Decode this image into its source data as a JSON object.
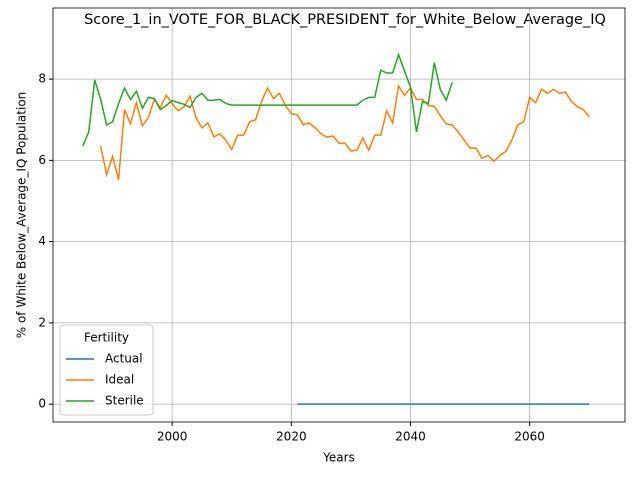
{
  "chart_data": {
    "type": "line",
    "title": "Score_1_in_VOTE_FOR_BLACK_PRESIDENT_for_White_Below_Average_IQ",
    "xlabel": "Years",
    "ylabel": "% of White Below_Average_IQ Population",
    "legend_title": "Fertility",
    "legend": "lower left",
    "grid": true,
    "xlim": [
      1980,
      2076
    ],
    "ylim": [
      -0.44,
      9.75
    ],
    "xticks": [
      2000,
      2020,
      2040,
      2060
    ],
    "yticks": [
      0,
      2,
      4,
      6,
      8
    ],
    "x": [
      1985,
      1986,
      1987,
      1988,
      1989,
      1990,
      1991,
      1992,
      1993,
      1994,
      1995,
      1996,
      1997,
      1998,
      1999,
      2000,
      2001,
      2002,
      2003,
      2004,
      2005,
      2006,
      2007,
      2008,
      2009,
      2010,
      2011,
      2012,
      2013,
      2014,
      2015,
      2016,
      2017,
      2018,
      2019,
      2020,
      2021,
      2022,
      2023,
      2024,
      2025,
      2026,
      2027,
      2028,
      2029,
      2030,
      2031,
      2032,
      2033,
      2034,
      2035,
      2036,
      2037,
      2038,
      2039,
      2040,
      2041,
      2042,
      2043,
      2044,
      2045,
      2046,
      2047,
      2048,
      2049,
      2050,
      2051,
      2052,
      2053,
      2054,
      2055,
      2056,
      2057,
      2058,
      2059,
      2060,
      2061,
      2062,
      2063,
      2064,
      2065,
      2066,
      2067,
      2068,
      2069,
      2070
    ],
    "series": [
      {
        "name": "Actual",
        "color": "#1f77b4",
        "values": [
          null,
          null,
          null,
          null,
          null,
          null,
          null,
          null,
          null,
          null,
          null,
          null,
          null,
          null,
          null,
          null,
          null,
          null,
          null,
          null,
          null,
          null,
          null,
          null,
          null,
          null,
          null,
          null,
          null,
          null,
          null,
          null,
          null,
          null,
          null,
          null,
          0,
          0,
          0,
          0,
          0,
          0,
          0,
          0,
          0,
          0,
          0,
          0,
          0,
          0,
          0,
          0,
          0,
          0,
          0,
          0,
          0,
          0,
          0,
          0,
          0,
          0,
          0,
          0,
          0,
          0,
          0,
          0,
          0,
          0,
          0,
          0,
          0,
          0,
          0,
          0,
          0,
          0,
          0,
          0,
          0,
          0,
          0,
          0,
          0,
          0
        ]
      },
      {
        "name": "Ideal",
        "color": "#ff7f0e",
        "values": [
          null,
          null,
          null,
          6.35,
          5.65,
          6.1,
          5.52,
          7.25,
          6.9,
          7.42,
          6.85,
          7.05,
          7.5,
          7.3,
          7.6,
          7.4,
          7.22,
          7.32,
          7.58,
          7.05,
          6.8,
          6.92,
          6.58,
          6.65,
          6.5,
          6.27,
          6.62,
          6.62,
          6.95,
          7.0,
          7.45,
          7.78,
          7.52,
          7.65,
          7.35,
          7.15,
          7.12,
          6.88,
          6.92,
          6.8,
          6.65,
          6.57,
          6.6,
          6.42,
          6.42,
          6.23,
          6.25,
          6.55,
          6.25,
          6.62,
          6.62,
          7.22,
          6.92,
          7.83,
          7.6,
          7.78,
          7.5,
          7.5,
          7.35,
          7.33,
          7.1,
          6.9,
          6.87,
          6.7,
          6.5,
          6.3,
          6.3,
          6.05,
          6.12,
          5.98,
          6.12,
          6.22,
          6.5,
          6.87,
          6.95,
          7.55,
          7.42,
          7.75,
          7.65,
          7.75,
          7.65,
          7.68,
          7.45,
          7.32,
          7.25,
          7.07
        ]
      },
      {
        "name": "Sterile",
        "color": "#2ca02c",
        "values": [
          6.35,
          6.7,
          7.98,
          7.5,
          6.87,
          6.95,
          7.4,
          7.78,
          7.5,
          7.7,
          7.28,
          7.55,
          7.52,
          7.25,
          7.35,
          7.47,
          7.42,
          7.38,
          7.3,
          7.55,
          7.65,
          7.48,
          7.48,
          7.5,
          7.4,
          7.36,
          7.36,
          7.36,
          7.36,
          7.36,
          7.36,
          7.36,
          7.36,
          7.36,
          7.36,
          7.36,
          7.36,
          7.36,
          7.36,
          7.36,
          7.36,
          7.36,
          7.36,
          7.36,
          7.36,
          7.36,
          7.36,
          7.48,
          7.55,
          7.55,
          8.22,
          8.15,
          8.15,
          8.6,
          8.2,
          7.8,
          6.7,
          7.45,
          7.4,
          8.4,
          7.75,
          7.48,
          7.92,
          null,
          null,
          null,
          null,
          null,
          null,
          null,
          null,
          null,
          null,
          null,
          null,
          null,
          null,
          null,
          null,
          null,
          null,
          null,
          null,
          null,
          null,
          null
        ]
      }
    ]
  }
}
